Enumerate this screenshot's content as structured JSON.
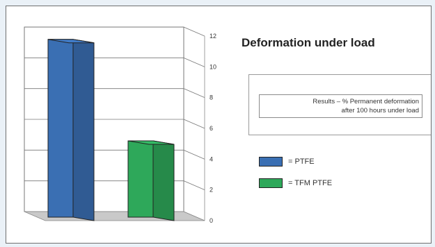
{
  "chart_data": {
    "type": "bar",
    "title": "Deformation under load",
    "categories": [
      "PTFE",
      "TFM PTFE"
    ],
    "values": [
      11.2,
      4.6
    ],
    "ylim": [
      0,
      12
    ],
    "yticks": [
      0,
      2,
      4,
      6,
      8,
      10,
      12
    ],
    "grid": true,
    "legend_placement": "right",
    "colors": {
      "PTFE": "#3a6fb3",
      "TFM PTFE": "#2ea85a"
    },
    "annotation": {
      "line1": "Results – % Permanent deformation",
      "line2": "after 100 hours under load"
    },
    "legend": [
      {
        "swatch_color": "#3a6fb3",
        "label": "= PTFE"
      },
      {
        "swatch_color": "#2ea85a",
        "label": "= TFM PTFE"
      }
    ]
  }
}
